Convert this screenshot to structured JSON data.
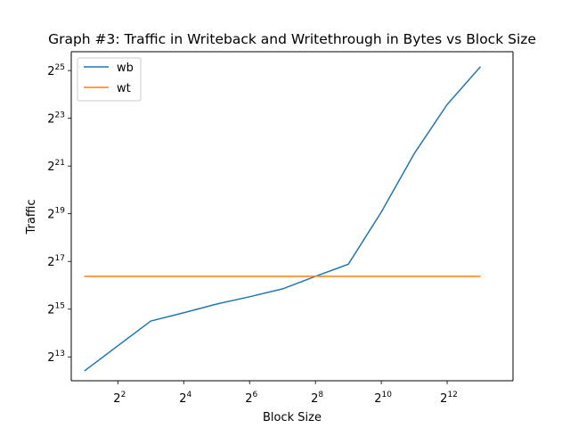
{
  "chart_data": {
    "type": "line",
    "title": "Graph #3: Traffic in Writeback and Writethrough in Bytes vs Block Size",
    "xlabel": "Block Size",
    "ylabel": "Traffic",
    "xscale": "log2",
    "yscale": "log2",
    "xlim": [
      1.5,
      16384
    ],
    "ylim": [
      4096,
      58000000
    ],
    "xticks": [
      {
        "value": 4,
        "base": "2",
        "exp": "2"
      },
      {
        "value": 16,
        "base": "2",
        "exp": "4"
      },
      {
        "value": 64,
        "base": "2",
        "exp": "6"
      },
      {
        "value": 256,
        "base": "2",
        "exp": "8"
      },
      {
        "value": 1024,
        "base": "2",
        "exp": "10"
      },
      {
        "value": 4096,
        "base": "2",
        "exp": "12"
      }
    ],
    "yticks": [
      {
        "value": 8192,
        "base": "2",
        "exp": "13"
      },
      {
        "value": 32768,
        "base": "2",
        "exp": "15"
      },
      {
        "value": 131072,
        "base": "2",
        "exp": "17"
      },
      {
        "value": 524288,
        "base": "2",
        "exp": "19"
      },
      {
        "value": 2097152,
        "base": "2",
        "exp": "21"
      },
      {
        "value": 8388608,
        "base": "2",
        "exp": "23"
      },
      {
        "value": 33554432,
        "base": "2",
        "exp": "25"
      }
    ],
    "x": [
      2,
      4,
      8,
      16,
      32,
      64,
      128,
      256,
      512,
      1024,
      2048,
      4096,
      8192
    ],
    "series": [
      {
        "name": "wb",
        "color": "#1f77b4",
        "values": [
          5500,
          11300,
          23200,
          29500,
          38000,
          47000,
          59000,
          85000,
          121000,
          550000,
          3000000,
          12500000,
          37000000
        ]
      },
      {
        "name": "wt",
        "color": "#ff7f0e",
        "values": [
          85000,
          85000,
          85000,
          85000,
          85000,
          85000,
          85000,
          85000,
          85000,
          85000,
          85000,
          85000,
          85000
        ]
      }
    ],
    "legend": "top-left",
    "grid": false
  }
}
